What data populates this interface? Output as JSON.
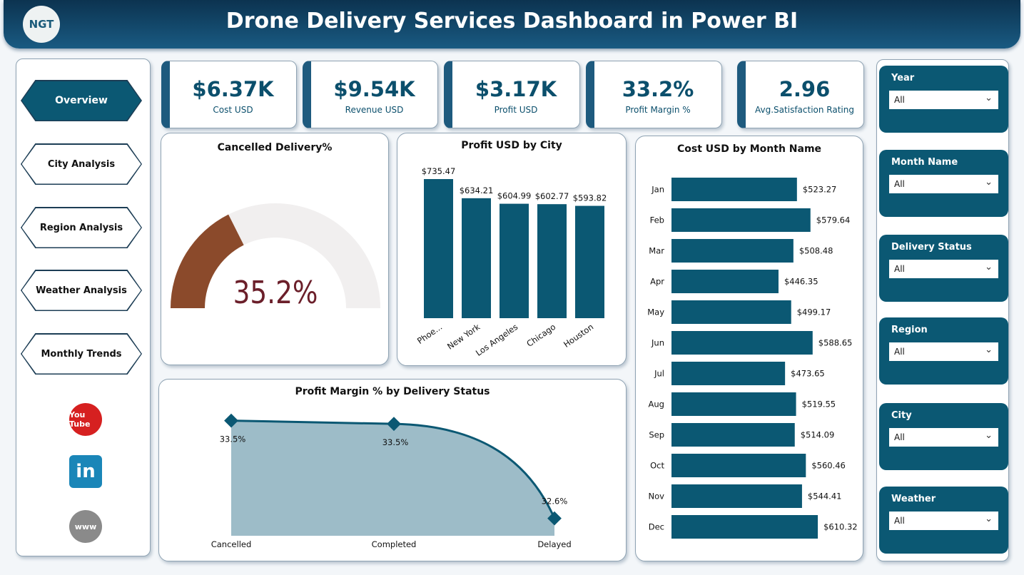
{
  "header": {
    "title": "Drone Delivery Services Dashboard in Power BI",
    "logo_text": "NGT"
  },
  "nav": {
    "items": [
      {
        "label": "Overview",
        "active": true
      },
      {
        "label": "City Analysis"
      },
      {
        "label": "Region Analysis"
      },
      {
        "label": "Weather Analysis"
      },
      {
        "label": "Monthly Trends"
      }
    ],
    "social": [
      {
        "icon": "youtube-icon",
        "label": "You Tube"
      },
      {
        "icon": "linkedin-icon",
        "label": "in"
      },
      {
        "icon": "globe-icon",
        "label": "www"
      }
    ]
  },
  "kpis": [
    {
      "value": "$6.37K",
      "label": "Cost USD"
    },
    {
      "value": "$9.54K",
      "label": "Revenue USD"
    },
    {
      "value": "$3.17K",
      "label": "Profit USD"
    },
    {
      "value": "33.2%",
      "label": "Profit Margin %"
    },
    {
      "value": "2.96",
      "label": "Avg.Satisfaction Rating"
    }
  ],
  "slicers": [
    {
      "label": "Year",
      "value": "All"
    },
    {
      "label": "Month Name",
      "value": "All"
    },
    {
      "label": "Delivery Status",
      "value": "All"
    },
    {
      "label": "Region",
      "value": "All"
    },
    {
      "label": "City",
      "value": "All"
    },
    {
      "label": "Weather",
      "value": "All"
    }
  ],
  "colors": {
    "primary": "#0b5873",
    "gauge": "#8b4a2b",
    "gauge_text": "#6b1f2a",
    "area": "#9dbcc8"
  },
  "chart_data": [
    {
      "type": "gauge",
      "title": "Cancelled Delivery%",
      "value": 35.2,
      "label": "35.2%",
      "max": 100
    },
    {
      "type": "bar",
      "title": "Profit USD by City",
      "categories": [
        "Phoe...",
        "New York",
        "Los Angeles",
        "Chicago",
        "Houston"
      ],
      "values": [
        735.47,
        634.21,
        604.99,
        602.77,
        593.82
      ],
      "data_labels": [
        "$735.47",
        "$634.21",
        "$604.99",
        "$602.77",
        "$593.82"
      ]
    },
    {
      "type": "bar",
      "orientation": "horizontal",
      "title": "Cost USD by Month Name",
      "categories": [
        "Jan",
        "Feb",
        "Mar",
        "Apr",
        "May",
        "Jun",
        "Jul",
        "Aug",
        "Sep",
        "Oct",
        "Nov",
        "Dec"
      ],
      "values": [
        523.27,
        579.64,
        508.48,
        446.35,
        499.17,
        588.65,
        473.65,
        519.55,
        514.09,
        560.46,
        544.41,
        610.32
      ],
      "data_labels": [
        "$523.27",
        "$579.64",
        "$508.48",
        "$446.35",
        "$499.17",
        "$588.65",
        "$473.65",
        "$519.55",
        "$514.09",
        "$560.46",
        "$544.41",
        "$610.32"
      ]
    },
    {
      "type": "area",
      "title": "Profit Margin % by Delivery Status",
      "categories": [
        "Cancelled",
        "Completed",
        "Delayed"
      ],
      "values": [
        33.5,
        33.47,
        32.6
      ],
      "data_labels": [
        "33.5%",
        "33.5%",
        "32.6%"
      ]
    }
  ]
}
